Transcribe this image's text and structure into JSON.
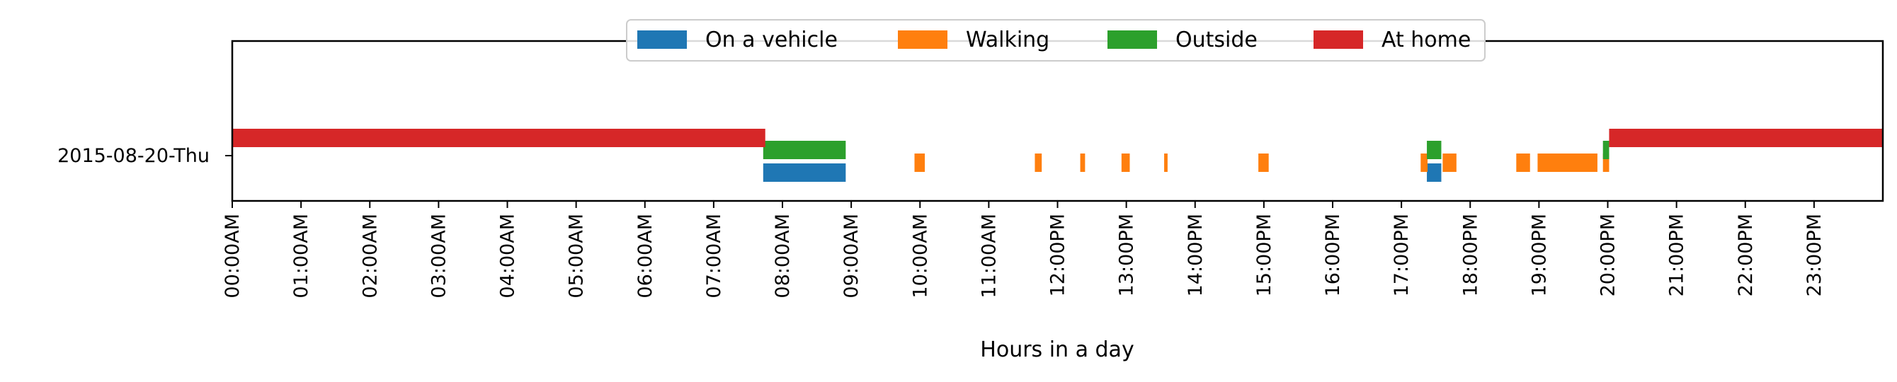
{
  "chart_data": {
    "type": "timeline",
    "xlabel": "Hours in a day",
    "xlim": [
      0,
      24
    ],
    "row_label": "2015-08-20-Thu",
    "tick_labels": [
      "00:00AM",
      "01:00AM",
      "02:00AM",
      "03:00AM",
      "04:00AM",
      "05:00AM",
      "06:00AM",
      "07:00AM",
      "08:00AM",
      "09:00AM",
      "10:00AM",
      "11:00AM",
      "12:00PM",
      "13:00PM",
      "14:00PM",
      "15:00PM",
      "16:00PM",
      "17:00PM",
      "18:00PM",
      "19:00PM",
      "20:00PM",
      "21:00PM",
      "22:00PM",
      "23:00PM"
    ],
    "legend_position": "upper-center",
    "series": [
      {
        "name": "On a vehicle",
        "color": "#1f77b4",
        "lane": 0,
        "intervals": [
          [
            7.72,
            8.92
          ],
          [
            17.37,
            17.58
          ]
        ]
      },
      {
        "name": "Walking",
        "color": "#ff7f0e",
        "lane": 1,
        "intervals": [
          [
            9.92,
            10.07
          ],
          [
            11.67,
            11.77
          ],
          [
            12.33,
            12.4
          ],
          [
            12.93,
            13.05
          ],
          [
            13.55,
            13.6
          ],
          [
            14.92,
            15.07
          ],
          [
            17.28,
            17.38
          ],
          [
            17.6,
            17.8
          ],
          [
            18.67,
            18.87
          ],
          [
            18.98,
            19.85
          ],
          [
            19.93,
            20.02
          ]
        ]
      },
      {
        "name": "Outside",
        "color": "#2ca02c",
        "lane": 2,
        "intervals": [
          [
            7.72,
            8.92
          ],
          [
            17.37,
            17.58
          ],
          [
            19.93,
            20.02
          ]
        ]
      },
      {
        "name": "At home",
        "color": "#d62728",
        "lane": 3,
        "intervals": [
          [
            0,
            7.75
          ],
          [
            20.02,
            24
          ]
        ]
      }
    ]
  }
}
